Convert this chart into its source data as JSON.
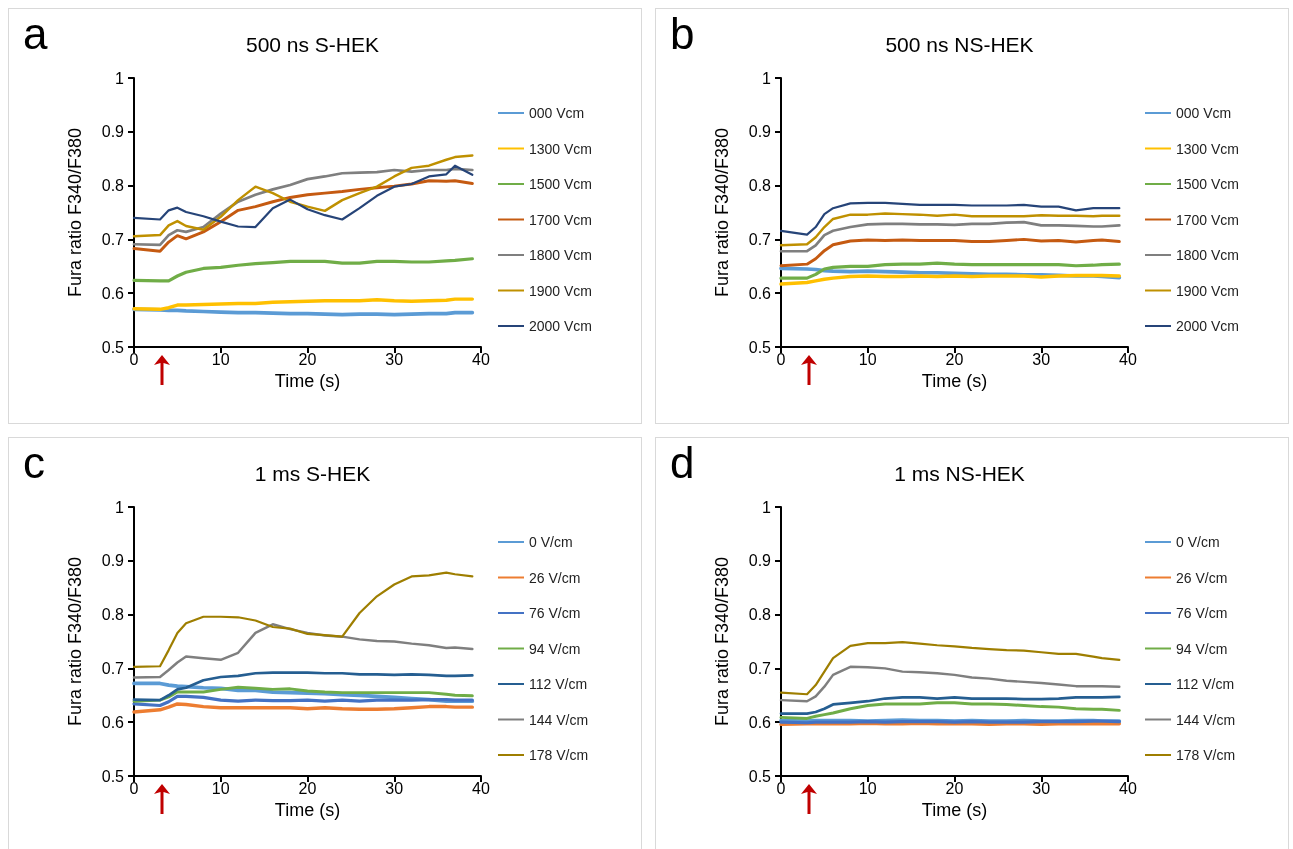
{
  "chart_data": [
    {
      "type": "line",
      "title": "500 ns S-HEK",
      "xlabel": "Time (s)",
      "ylabel": "Fura ratio F340/F380",
      "annotations": [
        "a"
      ],
      "legend": "right",
      "xlim": [
        0,
        40
      ],
      "xticks": [
        0,
        10,
        20,
        30,
        40
      ],
      "ylim": [
        0.5,
        1
      ],
      "yticks": [
        0.5,
        0.6,
        0.7,
        0.8,
        0.9,
        1
      ],
      "x": [
        0,
        3,
        4,
        5,
        6,
        8,
        10,
        12,
        14,
        16,
        18,
        20,
        22,
        24,
        26,
        28,
        30,
        32,
        34,
        36,
        37,
        39
      ],
      "series": [
        {
          "name": "000 Vcm",
          "color": "#5b9bd5",
          "values": [
            0.57,
            0.569,
            0.568,
            0.568,
            0.567,
            0.566,
            0.565,
            0.564,
            0.564,
            0.563,
            0.562,
            0.562,
            0.561,
            0.56,
            0.561,
            0.561,
            0.56,
            0.561,
            0.562,
            0.562,
            0.564,
            0.564
          ]
        },
        {
          "name": "1300 Vcm",
          "color": "#ffc000",
          "values": [
            0.571,
            0.57,
            0.573,
            0.578,
            0.578,
            0.579,
            0.58,
            0.581,
            0.581,
            0.583,
            0.584,
            0.585,
            0.586,
            0.586,
            0.586,
            0.588,
            0.586,
            0.585,
            0.586,
            0.587,
            0.589,
            0.589
          ]
        },
        {
          "name": "1500 Vcm",
          "color": "#70ad47",
          "values": [
            0.624,
            0.623,
            0.623,
            0.632,
            0.639,
            0.646,
            0.648,
            0.652,
            0.655,
            0.657,
            0.659,
            0.659,
            0.659,
            0.656,
            0.656,
            0.659,
            0.659,
            0.658,
            0.658,
            0.66,
            0.661,
            0.664
          ]
        },
        {
          "name": "1700 Vcm",
          "color": "#c55a11",
          "values": [
            0.683,
            0.678,
            0.695,
            0.707,
            0.701,
            0.714,
            0.733,
            0.754,
            0.761,
            0.77,
            0.778,
            0.783,
            0.786,
            0.789,
            0.793,
            0.796,
            0.799,
            0.803,
            0.809,
            0.808,
            0.809,
            0.804
          ]
        },
        {
          "name": "1800 Vcm",
          "color": "#7f7f7f",
          "values": [
            0.691,
            0.69,
            0.708,
            0.717,
            0.714,
            0.723,
            0.748,
            0.77,
            0.783,
            0.793,
            0.801,
            0.812,
            0.817,
            0.823,
            0.824,
            0.825,
            0.829,
            0.826,
            0.829,
            0.829,
            0.831,
            0.829
          ]
        },
        {
          "name": "1900 Vcm",
          "color": "#bf9000",
          "values": [
            0.706,
            0.708,
            0.726,
            0.734,
            0.725,
            0.718,
            0.742,
            0.773,
            0.798,
            0.786,
            0.77,
            0.761,
            0.753,
            0.773,
            0.786,
            0.798,
            0.817,
            0.833,
            0.837,
            0.848,
            0.853,
            0.856
          ]
        },
        {
          "name": "2000 Vcm",
          "color": "#264478",
          "values": [
            0.74,
            0.737,
            0.754,
            0.759,
            0.751,
            0.743,
            0.733,
            0.724,
            0.723,
            0.758,
            0.774,
            0.756,
            0.745,
            0.737,
            0.758,
            0.781,
            0.798,
            0.803,
            0.817,
            0.821,
            0.837,
            0.82
          ]
        }
      ]
    },
    {
      "type": "line",
      "title": "500 ns NS-HEK",
      "xlabel": "Time (s)",
      "ylabel": "Fura ratio F340/F380",
      "annotations": [
        "b"
      ],
      "legend": "right",
      "xlim": [
        0,
        40
      ],
      "xticks": [
        0,
        10,
        20,
        30,
        40
      ],
      "ylim": [
        0.5,
        1
      ],
      "yticks": [
        0.5,
        0.6,
        0.7,
        0.8,
        0.9,
        1
      ],
      "x": [
        0,
        3,
        4,
        5,
        6,
        8,
        10,
        12,
        14,
        16,
        18,
        20,
        22,
        24,
        26,
        28,
        30,
        32,
        34,
        36,
        37,
        39
      ],
      "series": [
        {
          "name": "000 Vcm",
          "color": "#5b9bd5",
          "values": [
            0.646,
            0.645,
            0.644,
            0.642,
            0.641,
            0.64,
            0.641,
            0.64,
            0.639,
            0.638,
            0.638,
            0.637,
            0.636,
            0.635,
            0.635,
            0.634,
            0.634,
            0.633,
            0.632,
            0.632,
            0.631,
            0.629
          ]
        },
        {
          "name": "1300 Vcm",
          "color": "#ffc000",
          "values": [
            0.617,
            0.62,
            0.623,
            0.626,
            0.628,
            0.631,
            0.632,
            0.631,
            0.631,
            0.632,
            0.631,
            0.632,
            0.631,
            0.632,
            0.632,
            0.632,
            0.63,
            0.632,
            0.633,
            0.633,
            0.633,
            0.632
          ]
        },
        {
          "name": "1500 Vcm",
          "color": "#70ad47",
          "values": [
            0.628,
            0.628,
            0.635,
            0.645,
            0.648,
            0.65,
            0.65,
            0.653,
            0.654,
            0.654,
            0.656,
            0.654,
            0.653,
            0.653,
            0.653,
            0.653,
            0.653,
            0.653,
            0.651,
            0.652,
            0.653,
            0.654
          ]
        },
        {
          "name": "1700 Vcm",
          "color": "#c55a11",
          "values": [
            0.651,
            0.654,
            0.664,
            0.679,
            0.69,
            0.697,
            0.699,
            0.698,
            0.699,
            0.698,
            0.698,
            0.698,
            0.696,
            0.696,
            0.698,
            0.7,
            0.697,
            0.698,
            0.695,
            0.698,
            0.699,
            0.696
          ]
        },
        {
          "name": "1800 Vcm",
          "color": "#7f7f7f",
          "values": [
            0.678,
            0.678,
            0.689,
            0.708,
            0.716,
            0.723,
            0.728,
            0.729,
            0.729,
            0.728,
            0.728,
            0.727,
            0.729,
            0.729,
            0.731,
            0.732,
            0.726,
            0.726,
            0.725,
            0.724,
            0.724,
            0.726
          ]
        },
        {
          "name": "1900 Vcm",
          "color": "#bf9000",
          "values": [
            0.689,
            0.691,
            0.704,
            0.723,
            0.738,
            0.746,
            0.746,
            0.748,
            0.747,
            0.746,
            0.744,
            0.746,
            0.743,
            0.743,
            0.743,
            0.743,
            0.745,
            0.744,
            0.744,
            0.743,
            0.744,
            0.744
          ]
        },
        {
          "name": "2000 Vcm",
          "color": "#264478",
          "values": [
            0.716,
            0.709,
            0.723,
            0.747,
            0.758,
            0.767,
            0.768,
            0.768,
            0.766,
            0.764,
            0.764,
            0.764,
            0.763,
            0.763,
            0.763,
            0.764,
            0.761,
            0.761,
            0.754,
            0.758,
            0.758,
            0.758
          ]
        }
      ]
    },
    {
      "type": "line",
      "title": "1 ms S-HEK",
      "xlabel": "Time (s)",
      "ylabel": "Fura ratio F340/F380",
      "annotations": [
        "c"
      ],
      "legend": "right",
      "xlim": [
        0,
        40
      ],
      "xticks": [
        0,
        10,
        20,
        30,
        40
      ],
      "ylim": [
        0.5,
        1
      ],
      "yticks": [
        0.5,
        0.6,
        0.7,
        0.8,
        0.9,
        1
      ],
      "x": [
        0,
        3,
        4,
        5,
        6,
        8,
        10,
        12,
        14,
        16,
        18,
        20,
        22,
        24,
        26,
        28,
        30,
        32,
        34,
        36,
        37,
        39
      ],
      "series": [
        {
          "name": "0 V/cm",
          "color": "#5b9bd5",
          "values": [
            0.672,
            0.672,
            0.669,
            0.667,
            0.666,
            0.664,
            0.663,
            0.659,
            0.659,
            0.656,
            0.655,
            0.654,
            0.653,
            0.651,
            0.65,
            0.648,
            0.646,
            0.644,
            0.642,
            0.639,
            0.639,
            0.639
          ]
        },
        {
          "name": "26 V/cm",
          "color": "#ed7d31",
          "values": [
            0.619,
            0.623,
            0.628,
            0.634,
            0.633,
            0.629,
            0.627,
            0.627,
            0.627,
            0.627,
            0.627,
            0.625,
            0.627,
            0.625,
            0.624,
            0.624,
            0.625,
            0.627,
            0.629,
            0.629,
            0.628,
            0.628
          ]
        },
        {
          "name": "76 V/cm",
          "color": "#4472c4",
          "values": [
            0.634,
            0.631,
            0.638,
            0.648,
            0.648,
            0.646,
            0.641,
            0.639,
            0.641,
            0.64,
            0.64,
            0.641,
            0.639,
            0.641,
            0.639,
            0.641,
            0.641,
            0.641,
            0.642,
            0.642,
            0.641,
            0.641
          ]
        },
        {
          "name": "94 V/cm",
          "color": "#70ad47",
          "values": [
            0.639,
            0.641,
            0.647,
            0.656,
            0.656,
            0.656,
            0.661,
            0.665,
            0.663,
            0.661,
            0.662,
            0.658,
            0.656,
            0.655,
            0.655,
            0.655,
            0.655,
            0.655,
            0.655,
            0.652,
            0.65,
            0.649
          ]
        },
        {
          "name": "112 V/cm",
          "color": "#255e91",
          "values": [
            0.642,
            0.641,
            0.65,
            0.661,
            0.664,
            0.678,
            0.684,
            0.686,
            0.691,
            0.692,
            0.692,
            0.692,
            0.691,
            0.691,
            0.689,
            0.689,
            0.688,
            0.689,
            0.688,
            0.686,
            0.686,
            0.687
          ]
        },
        {
          "name": "144 V/cm",
          "color": "#7f7f7f",
          "values": [
            0.683,
            0.684,
            0.697,
            0.711,
            0.722,
            0.719,
            0.716,
            0.729,
            0.766,
            0.782,
            0.773,
            0.766,
            0.761,
            0.759,
            0.754,
            0.751,
            0.75,
            0.746,
            0.743,
            0.738,
            0.739,
            0.736
          ]
        },
        {
          "name": "178 V/cm",
          "color": "#9e7e00",
          "values": [
            0.703,
            0.704,
            0.734,
            0.766,
            0.784,
            0.796,
            0.796,
            0.795,
            0.789,
            0.777,
            0.774,
            0.764,
            0.762,
            0.759,
            0.803,
            0.834,
            0.856,
            0.871,
            0.873,
            0.878,
            0.875,
            0.871
          ]
        }
      ]
    },
    {
      "type": "line",
      "title": "1 ms NS-HEK",
      "xlabel": "Time (s)",
      "ylabel": "Fura ratio F340/F380",
      "annotations": [
        "d"
      ],
      "legend": "right",
      "xlim": [
        0,
        40
      ],
      "xticks": [
        0,
        10,
        20,
        30,
        40
      ],
      "ylim": [
        0.5,
        1
      ],
      "yticks": [
        0.5,
        0.6,
        0.7,
        0.8,
        0.9,
        1
      ],
      "x": [
        0,
        3,
        4,
        5,
        6,
        8,
        10,
        12,
        14,
        16,
        18,
        20,
        22,
        24,
        26,
        28,
        30,
        32,
        34,
        36,
        37,
        39
      ],
      "series": [
        {
          "name": "0 V/cm",
          "color": "#5b9bd5",
          "values": [
            0.603,
            0.602,
            0.603,
            0.603,
            0.603,
            0.603,
            0.602,
            0.603,
            0.604,
            0.603,
            0.603,
            0.602,
            0.603,
            0.602,
            0.602,
            0.603,
            0.602,
            0.602,
            0.603,
            0.603,
            0.602,
            0.602
          ]
        },
        {
          "name": "26 V/cm",
          "color": "#ed7d31",
          "values": [
            0.596,
            0.597,
            0.597,
            0.597,
            0.597,
            0.597,
            0.598,
            0.597,
            0.597,
            0.598,
            0.597,
            0.597,
            0.597,
            0.596,
            0.597,
            0.597,
            0.596,
            0.597,
            0.597,
            0.597,
            0.597,
            0.597
          ]
        },
        {
          "name": "76 V/cm",
          "color": "#4472c4",
          "values": [
            0.6,
            0.599,
            0.6,
            0.6,
            0.6,
            0.6,
            0.601,
            0.6,
            0.601,
            0.601,
            0.601,
            0.6,
            0.601,
            0.6,
            0.6,
            0.6,
            0.601,
            0.601,
            0.601,
            0.602,
            0.602,
            0.601
          ]
        },
        {
          "name": "94 V/cm",
          "color": "#70ad47",
          "values": [
            0.609,
            0.607,
            0.611,
            0.614,
            0.617,
            0.625,
            0.631,
            0.634,
            0.634,
            0.634,
            0.636,
            0.636,
            0.634,
            0.634,
            0.633,
            0.631,
            0.629,
            0.628,
            0.625,
            0.624,
            0.624,
            0.622
          ]
        },
        {
          "name": "112 V/cm",
          "color": "#255e91",
          "values": [
            0.616,
            0.616,
            0.619,
            0.625,
            0.633,
            0.636,
            0.639,
            0.644,
            0.646,
            0.646,
            0.644,
            0.646,
            0.644,
            0.644,
            0.644,
            0.643,
            0.643,
            0.644,
            0.646,
            0.646,
            0.646,
            0.647
          ]
        },
        {
          "name": "144 V/cm",
          "color": "#7f7f7f",
          "values": [
            0.641,
            0.639,
            0.648,
            0.666,
            0.688,
            0.703,
            0.702,
            0.7,
            0.694,
            0.693,
            0.691,
            0.688,
            0.683,
            0.681,
            0.677,
            0.675,
            0.673,
            0.67,
            0.667,
            0.667,
            0.667,
            0.666
          ]
        },
        {
          "name": "178 V/cm",
          "color": "#9e7e00",
          "values": [
            0.655,
            0.652,
            0.669,
            0.694,
            0.719,
            0.742,
            0.747,
            0.747,
            0.749,
            0.746,
            0.743,
            0.741,
            0.738,
            0.736,
            0.734,
            0.733,
            0.73,
            0.727,
            0.727,
            0.722,
            0.719,
            0.716
          ]
        }
      ]
    }
  ]
}
